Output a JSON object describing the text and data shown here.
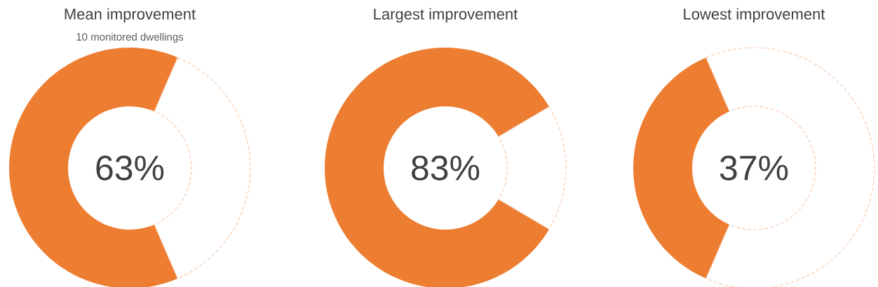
{
  "chart_data": [
    {
      "type": "donut",
      "title": "Mean improvement",
      "subtitle": "10 monitored dwellings",
      "categories": [
        null,
        null
      ],
      "values": [
        63,
        37
      ],
      "colors": [
        "#ed7d31",
        "#ffffff"
      ],
      "annotations": [
        "63%"
      ]
    },
    {
      "type": "donut",
      "title": "Largest improvement",
      "categories": [
        null,
        null
      ],
      "values": [
        83,
        17
      ],
      "colors": [
        "#ed7d31",
        "#ffffff"
      ],
      "annotations": [
        "83%"
      ]
    },
    {
      "type": "donut",
      "title": "Lowest improvement",
      "categories": [
        null,
        null
      ],
      "values": [
        37,
        63
      ],
      "colors": [
        "#ed7d31",
        "#ffffff"
      ],
      "annotations": [
        "37%"
      ]
    }
  ]
}
